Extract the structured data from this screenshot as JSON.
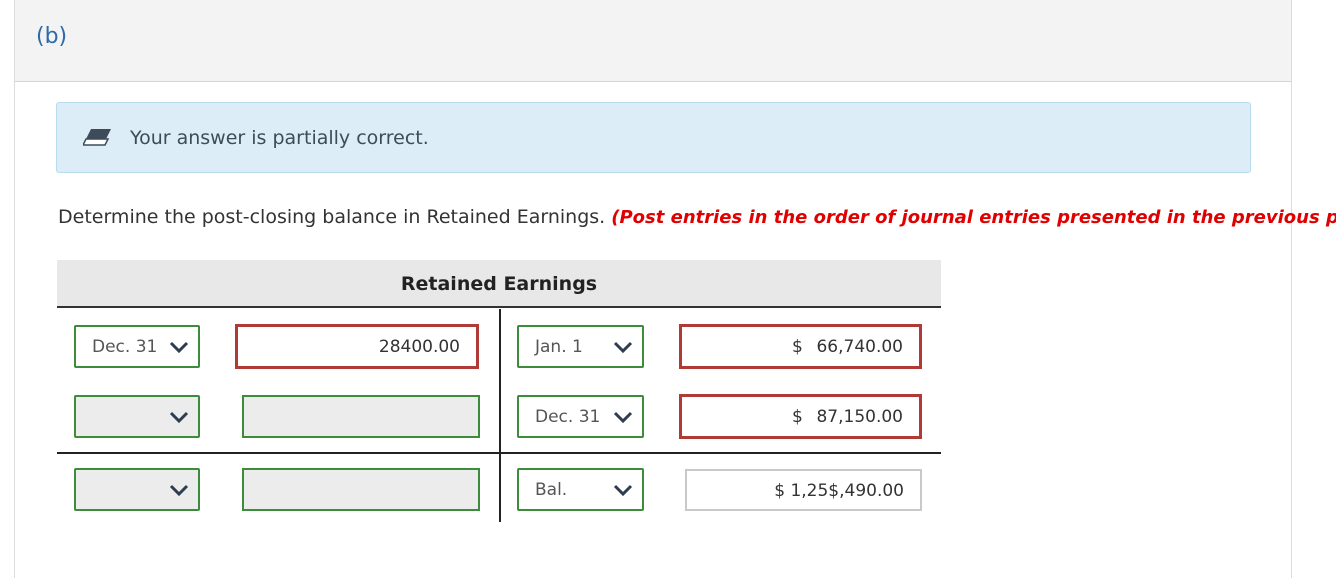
{
  "part_label": "(b)",
  "feedback": {
    "icon": "eraser-icon",
    "text": "Your answer is partially correct."
  },
  "question": {
    "text": "Determine the post-closing balance in Retained Earnings.",
    "note": "(Post entries in the order of journal entries presented in the previous part.)"
  },
  "ledger": {
    "title": "Retained Earnings",
    "rows": [
      {
        "debit_date": "Dec. 31",
        "debit_amount": "28400.00",
        "credit_date": "Jan. 1",
        "credit_currency": "$",
        "credit_amount": "66,740.00"
      },
      {
        "debit_date": "",
        "debit_amount": "",
        "credit_date": "Dec. 31",
        "credit_currency": "$",
        "credit_amount": "87,150.00"
      }
    ],
    "balance": {
      "debit_date": "",
      "debit_amount": "",
      "credit_date": "Bal.",
      "credit_amount": "$ 1,25$,490.00"
    }
  },
  "colors": {
    "link_blue": "#2d6aa8",
    "correct_green": "#3c8c3c",
    "incorrect_red": "#b03a35",
    "note_red": "#e00000",
    "feedback_bg": "#dcedf7"
  }
}
